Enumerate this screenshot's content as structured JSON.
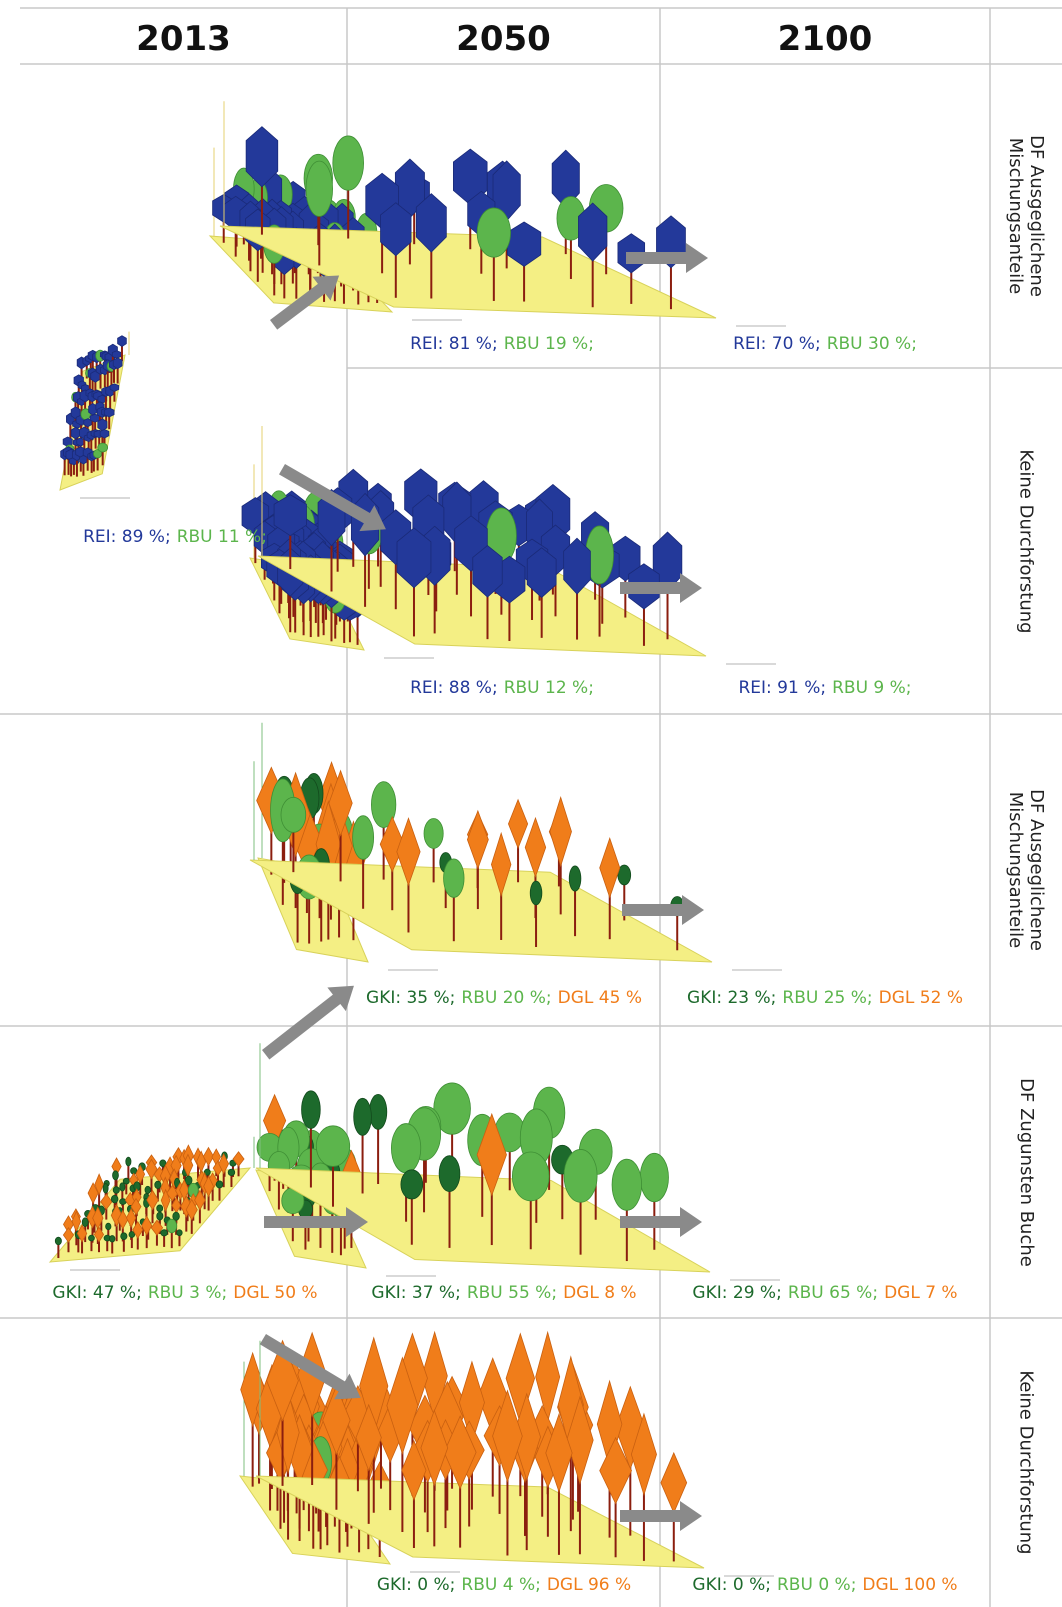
{
  "columns": [
    "2013",
    "2050",
    "2100"
  ],
  "row_labels": [
    [
      "DF Ausgeglichene",
      "Mischungsanteile"
    ],
    [
      "Keine Durchforstung"
    ],
    [
      "DF Ausgeglichene",
      "Mischungsanteile"
    ],
    [
      "DF Zugunsten Buche"
    ],
    [
      "Keine Durchforstung"
    ]
  ],
  "colors": {
    "REI": "#23399a",
    "RBU": "#5cb54c",
    "GKI": "#1d6a2c",
    "DGL": "#f07d1a",
    "ground": "#f4ef84",
    "trunk": "#8b1e0f",
    "arrow": "#8a8a8a",
    "grid": "#c8c8c8"
  },
  "captions": {
    "a2013": [
      {
        "sp": "REI",
        "text": "REI: 89 %;"
      },
      {
        "sp": "RBU",
        "text": "RBU 11 %;"
      }
    ],
    "a2050_1": [
      {
        "sp": "REI",
        "text": "REI: 81 %;"
      },
      {
        "sp": "RBU",
        "text": "RBU 19 %;"
      }
    ],
    "a2100_1": [
      {
        "sp": "REI",
        "text": "REI: 70 %;"
      },
      {
        "sp": "RBU",
        "text": "RBU 30 %;"
      }
    ],
    "a2050_2": [
      {
        "sp": "REI",
        "text": "REI: 88 %;"
      },
      {
        "sp": "RBU",
        "text": "RBU 12 %;"
      }
    ],
    "a2100_2": [
      {
        "sp": "REI",
        "text": "REI: 91 %;"
      },
      {
        "sp": "RBU",
        "text": "RBU 9 %;"
      }
    ],
    "b2013": [
      {
        "sp": "GKI",
        "text": "GKI: 47 %;"
      },
      {
        "sp": "RBU",
        "text": "RBU 3 %;"
      },
      {
        "sp": "DGL",
        "text": "DGL 50 %"
      }
    ],
    "b2050_1": [
      {
        "sp": "GKI",
        "text": "GKI: 35 %;"
      },
      {
        "sp": "RBU",
        "text": "RBU 20 %;"
      },
      {
        "sp": "DGL",
        "text": "DGL 45 %"
      }
    ],
    "b2100_1": [
      {
        "sp": "GKI",
        "text": "GKI: 23 %;"
      },
      {
        "sp": "RBU",
        "text": "RBU 25 %;"
      },
      {
        "sp": "DGL",
        "text": "DGL 52 %"
      }
    ],
    "b2050_2": [
      {
        "sp": "GKI",
        "text": "GKI: 37 %;"
      },
      {
        "sp": "RBU",
        "text": "RBU 55 %;"
      },
      {
        "sp": "DGL",
        "text": "DGL 8 %"
      }
    ],
    "b2100_2": [
      {
        "sp": "GKI",
        "text": "GKI: 29 %;"
      },
      {
        "sp": "RBU",
        "text": "RBU 65 %;"
      },
      {
        "sp": "DGL",
        "text": "DGL 7 %"
      }
    ],
    "b2050_3": [
      {
        "sp": "GKI",
        "text": "GKI: 0 %;"
      },
      {
        "sp": "RBU",
        "text": "RBU 4 %;"
      },
      {
        "sp": "DGL",
        "text": "DGL 96 %"
      }
    ],
    "b2100_3": [
      {
        "sp": "GKI",
        "text": "GKI: 0 %;"
      },
      {
        "sp": "RBU",
        "text": "RBU 0 %;"
      },
      {
        "sp": "DGL",
        "text": "DGL 100 %"
      }
    ]
  },
  "stands": {
    "a2013": {
      "mix": {
        "REI": 89,
        "RBU": 11
      }
    },
    "a2050_1": {
      "mix": {
        "REI": 81,
        "RBU": 19
      }
    },
    "a2100_1": {
      "mix": {
        "REI": 70,
        "RBU": 30
      }
    },
    "a2050_2": {
      "mix": {
        "REI": 88,
        "RBU": 12
      }
    },
    "a2100_2": {
      "mix": {
        "REI": 91,
        "RBU": 9
      }
    },
    "b2013": {
      "mix": {
        "GKI": 47,
        "RBU": 3,
        "DGL": 50
      }
    },
    "b2050_1": {
      "mix": {
        "GKI": 35,
        "RBU": 20,
        "DGL": 45
      }
    },
    "b2100_1": {
      "mix": {
        "GKI": 23,
        "RBU": 25,
        "DGL": 52
      }
    },
    "b2050_2": {
      "mix": {
        "GKI": 37,
        "RBU": 55,
        "DGL": 8
      }
    },
    "b2100_2": {
      "mix": {
        "GKI": 29,
        "RBU": 65,
        "DGL": 7
      }
    },
    "b2050_3": {
      "mix": {
        "GKI": 0,
        "RBU": 4,
        "DGL": 96
      }
    },
    "b2100_3": {
      "mix": {
        "GKI": 0,
        "RBU": 0,
        "DGL": 100
      }
    }
  }
}
